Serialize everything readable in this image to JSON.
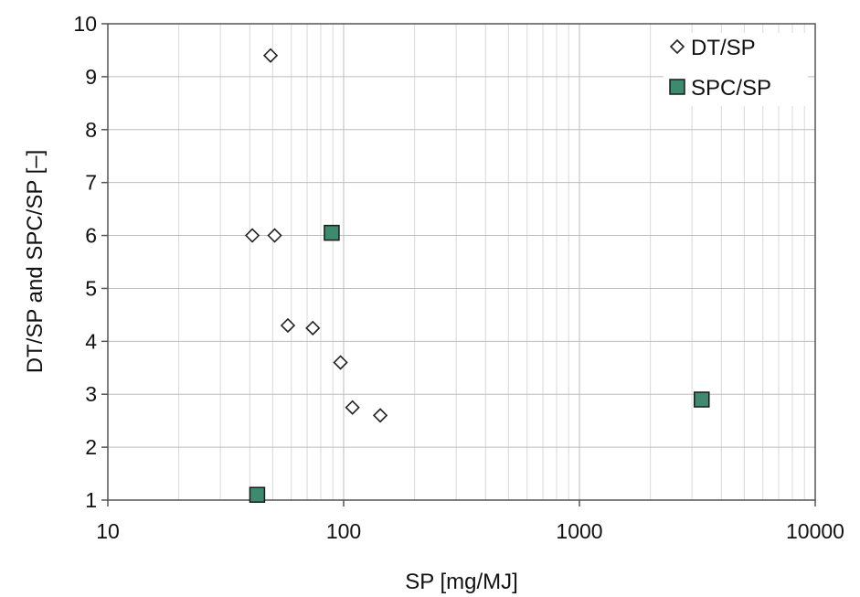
{
  "chart_data": {
    "type": "scatter",
    "title": "",
    "xlabel": "SP  [mg/MJ]",
    "ylabel": "DT/SP and SPC/SP  [–]",
    "x_scale": "log",
    "xlim": [
      10,
      10000
    ],
    "ylim": [
      1,
      10
    ],
    "x_ticks": [
      10,
      100,
      1000,
      10000
    ],
    "x_tick_labels": [
      "10",
      "100",
      "1000",
      "10000"
    ],
    "y_ticks": [
      1,
      2,
      3,
      4,
      5,
      6,
      7,
      8,
      9,
      10
    ],
    "y_tick_labels": [
      "1",
      "2",
      "3",
      "4",
      "5",
      "6",
      "7",
      "8",
      "9",
      "10"
    ],
    "grid": true,
    "legend_position": "top-right",
    "series": [
      {
        "name": "DT/SP",
        "marker": "diamond",
        "color": "#ffffff",
        "stroke": "#222222",
        "points": [
          {
            "x": 49,
            "y": 9.4
          },
          {
            "x": 41,
            "y": 6.0
          },
          {
            "x": 51,
            "y": 6.0
          },
          {
            "x": 58,
            "y": 4.3
          },
          {
            "x": 74,
            "y": 4.25
          },
          {
            "x": 97,
            "y": 3.6
          },
          {
            "x": 109,
            "y": 2.75
          },
          {
            "x": 143,
            "y": 2.6
          }
        ]
      },
      {
        "name": "SPC/SP",
        "marker": "square",
        "color": "#3d8a6e",
        "stroke": "#1a1a1a",
        "points": [
          {
            "x": 89,
            "y": 6.05
          },
          {
            "x": 3300,
            "y": 2.9
          },
          {
            "x": 43,
            "y": 1.1
          }
        ]
      }
    ]
  }
}
